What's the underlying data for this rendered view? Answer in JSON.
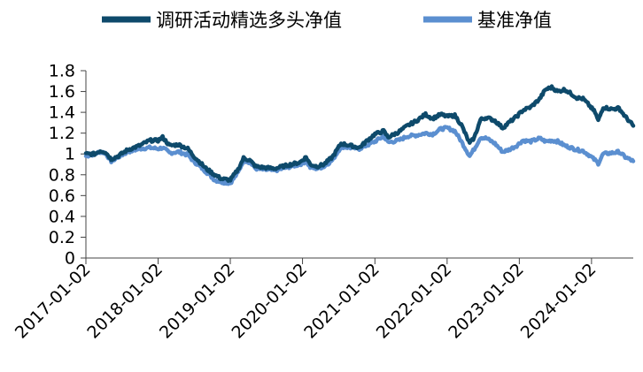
{
  "chart_data": {
    "type": "line",
    "title": "",
    "xlabel": "",
    "ylabel": "",
    "x_type": "date",
    "xlim": [
      "2017-01-02",
      "2024-07-31"
    ],
    "ylim": [
      0,
      1.8
    ],
    "y_ticks": [
      "0",
      "0.2",
      "0.4",
      "0.6",
      "0.8",
      "1",
      "1.2",
      "1.4",
      "1.6",
      "1.8"
    ],
    "x_ticks": [
      "2017-01-02",
      "2018-01-02",
      "2019-01-02",
      "2020-01-02",
      "2021-01-02",
      "2022-01-02",
      "2023-01-02",
      "2024-01-02"
    ],
    "grid": false,
    "legend_position": "top",
    "series": [
      {
        "name": "调研活动精选多头净值",
        "color": "#0e4a6b",
        "points": [
          [
            "2017-01-02",
            1.0
          ],
          [
            "2017-02-15",
            1.0
          ],
          [
            "2017-03-15",
            1.03
          ],
          [
            "2017-04-10",
            1.02
          ],
          [
            "2017-05-10",
            0.95
          ],
          [
            "2017-06-15",
            0.98
          ],
          [
            "2017-08-01",
            1.04
          ],
          [
            "2017-10-01",
            1.08
          ],
          [
            "2017-11-20",
            1.13
          ],
          [
            "2018-01-02",
            1.13
          ],
          [
            "2018-01-25",
            1.16
          ],
          [
            "2018-03-01",
            1.08
          ],
          [
            "2018-04-15",
            1.09
          ],
          [
            "2018-06-01",
            1.05
          ],
          [
            "2018-07-01",
            0.98
          ],
          [
            "2018-08-01",
            0.92
          ],
          [
            "2018-09-01",
            0.86
          ],
          [
            "2018-10-15",
            0.8
          ],
          [
            "2018-11-20",
            0.76
          ],
          [
            "2019-01-02",
            0.75
          ],
          [
            "2019-02-10",
            0.85
          ],
          [
            "2019-03-10",
            0.96
          ],
          [
            "2019-04-10",
            0.94
          ],
          [
            "2019-05-10",
            0.88
          ],
          [
            "2019-06-15",
            0.87
          ],
          [
            "2019-08-15",
            0.86
          ],
          [
            "2019-10-15",
            0.89
          ],
          [
            "2019-12-20",
            0.92
          ],
          [
            "2020-01-20",
            0.97
          ],
          [
            "2020-02-10",
            0.9
          ],
          [
            "2020-03-15",
            0.88
          ],
          [
            "2020-04-20",
            0.9
          ],
          [
            "2020-06-01",
            0.97
          ],
          [
            "2020-07-15",
            1.1
          ],
          [
            "2020-09-01",
            1.08
          ],
          [
            "2020-10-15",
            1.06
          ],
          [
            "2020-12-01",
            1.14
          ],
          [
            "2021-01-02",
            1.19
          ],
          [
            "2021-02-15",
            1.22
          ],
          [
            "2021-03-10",
            1.16
          ],
          [
            "2021-05-01",
            1.21
          ],
          [
            "2021-06-15",
            1.27
          ],
          [
            "2021-08-01",
            1.32
          ],
          [
            "2021-09-15",
            1.38
          ],
          [
            "2021-10-20",
            1.34
          ],
          [
            "2021-12-01",
            1.38
          ],
          [
            "2022-01-02",
            1.36
          ],
          [
            "2022-02-10",
            1.37
          ],
          [
            "2022-03-15",
            1.28
          ],
          [
            "2022-04-26",
            1.1
          ],
          [
            "2022-05-20",
            1.16
          ],
          [
            "2022-06-20",
            1.33
          ],
          [
            "2022-07-20",
            1.35
          ],
          [
            "2022-09-01",
            1.32
          ],
          [
            "2022-10-10",
            1.25
          ],
          [
            "2022-11-10",
            1.3
          ],
          [
            "2022-12-20",
            1.36
          ],
          [
            "2023-01-20",
            1.42
          ],
          [
            "2023-03-01",
            1.45
          ],
          [
            "2023-04-15",
            1.53
          ],
          [
            "2023-05-15",
            1.62
          ],
          [
            "2023-06-15",
            1.64
          ],
          [
            "2023-07-15",
            1.6
          ],
          [
            "2023-08-20",
            1.62
          ],
          [
            "2023-09-20",
            1.58
          ],
          [
            "2023-10-20",
            1.54
          ],
          [
            "2023-11-20",
            1.53
          ],
          [
            "2023-12-20",
            1.47
          ],
          [
            "2024-01-20",
            1.4
          ],
          [
            "2024-02-05",
            1.32
          ],
          [
            "2024-03-01",
            1.45
          ],
          [
            "2024-04-15",
            1.43
          ],
          [
            "2024-05-20",
            1.44
          ],
          [
            "2024-06-20",
            1.36
          ],
          [
            "2024-07-31",
            1.27
          ]
        ]
      },
      {
        "name": "基准净值",
        "color": "#5b8fd0",
        "points": [
          [
            "2017-01-02",
            0.98
          ],
          [
            "2017-02-15",
            1.0
          ],
          [
            "2017-03-15",
            1.02
          ],
          [
            "2017-04-10",
            1.01
          ],
          [
            "2017-05-10",
            0.93
          ],
          [
            "2017-06-15",
            0.97
          ],
          [
            "2017-08-01",
            1.02
          ],
          [
            "2017-10-01",
            1.05
          ],
          [
            "2017-11-20",
            1.06
          ],
          [
            "2018-01-02",
            1.05
          ],
          [
            "2018-01-25",
            1.06
          ],
          [
            "2018-03-01",
            1.01
          ],
          [
            "2018-04-15",
            1.02
          ],
          [
            "2018-06-01",
            0.99
          ],
          [
            "2018-07-01",
            0.93
          ],
          [
            "2018-08-01",
            0.88
          ],
          [
            "2018-09-01",
            0.83
          ],
          [
            "2018-10-15",
            0.75
          ],
          [
            "2018-11-20",
            0.73
          ],
          [
            "2019-01-02",
            0.72
          ],
          [
            "2019-02-10",
            0.82
          ],
          [
            "2019-03-10",
            0.94
          ],
          [
            "2019-04-10",
            0.92
          ],
          [
            "2019-05-10",
            0.86
          ],
          [
            "2019-06-15",
            0.85
          ],
          [
            "2019-08-15",
            0.84
          ],
          [
            "2019-10-15",
            0.87
          ],
          [
            "2019-12-20",
            0.9
          ],
          [
            "2020-01-20",
            0.93
          ],
          [
            "2020-02-10",
            0.87
          ],
          [
            "2020-03-15",
            0.86
          ],
          [
            "2020-04-20",
            0.88
          ],
          [
            "2020-06-01",
            0.94
          ],
          [
            "2020-07-15",
            1.07
          ],
          [
            "2020-09-01",
            1.06
          ],
          [
            "2020-10-15",
            1.05
          ],
          [
            "2020-12-01",
            1.09
          ],
          [
            "2021-01-02",
            1.12
          ],
          [
            "2021-02-15",
            1.17
          ],
          [
            "2021-03-10",
            1.11
          ],
          [
            "2021-05-01",
            1.13
          ],
          [
            "2021-06-15",
            1.17
          ],
          [
            "2021-08-01",
            1.18
          ],
          [
            "2021-09-15",
            1.2
          ],
          [
            "2021-10-20",
            1.19
          ],
          [
            "2021-12-01",
            1.24
          ],
          [
            "2022-01-02",
            1.25
          ],
          [
            "2022-02-10",
            1.22
          ],
          [
            "2022-03-15",
            1.12
          ],
          [
            "2022-04-26",
            0.98
          ],
          [
            "2022-05-20",
            1.05
          ],
          [
            "2022-06-20",
            1.16
          ],
          [
            "2022-07-20",
            1.15
          ],
          [
            "2022-09-01",
            1.1
          ],
          [
            "2022-10-10",
            1.02
          ],
          [
            "2022-11-10",
            1.04
          ],
          [
            "2022-12-20",
            1.08
          ],
          [
            "2023-01-20",
            1.13
          ],
          [
            "2023-03-01",
            1.12
          ],
          [
            "2023-04-15",
            1.15
          ],
          [
            "2023-05-15",
            1.12
          ],
          [
            "2023-06-15",
            1.13
          ],
          [
            "2023-07-15",
            1.12
          ],
          [
            "2023-08-20",
            1.08
          ],
          [
            "2023-09-20",
            1.06
          ],
          [
            "2023-10-20",
            1.04
          ],
          [
            "2023-11-20",
            1.03
          ],
          [
            "2023-12-20",
            0.99
          ],
          [
            "2024-01-20",
            0.94
          ],
          [
            "2024-02-05",
            0.91
          ],
          [
            "2024-03-01",
            1.0
          ],
          [
            "2024-04-15",
            1.01
          ],
          [
            "2024-05-20",
            1.02
          ],
          [
            "2024-06-20",
            0.97
          ],
          [
            "2024-07-31",
            0.93
          ]
        ]
      }
    ]
  }
}
